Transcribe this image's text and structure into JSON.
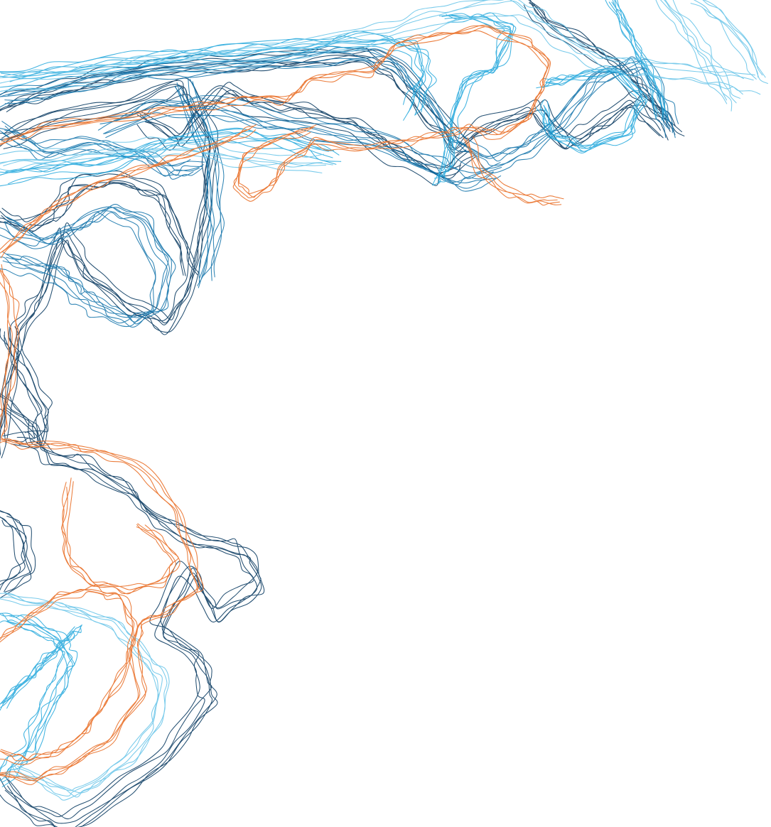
{
  "artwork": {
    "description_visible_text": "",
    "palette": {
      "navy": "#0d3d63",
      "blue": "#0b6fa8",
      "cyan": "#22a7dc",
      "sky": "#6cc6e9",
      "orange": "#ea7631",
      "background": "#ffffff"
    },
    "line_groups": [
      {
        "name": "navy",
        "color_key": "navy",
        "opacity": 0.9
      },
      {
        "name": "blue",
        "color_key": "blue",
        "opacity": 0.85
      },
      {
        "name": "cyan",
        "color_key": "cyan",
        "opacity": 0.85
      },
      {
        "name": "sky",
        "color_key": "sky",
        "opacity": 0.9
      },
      {
        "name": "orange",
        "color_key": "orange",
        "opacity": 0.95
      }
    ]
  }
}
